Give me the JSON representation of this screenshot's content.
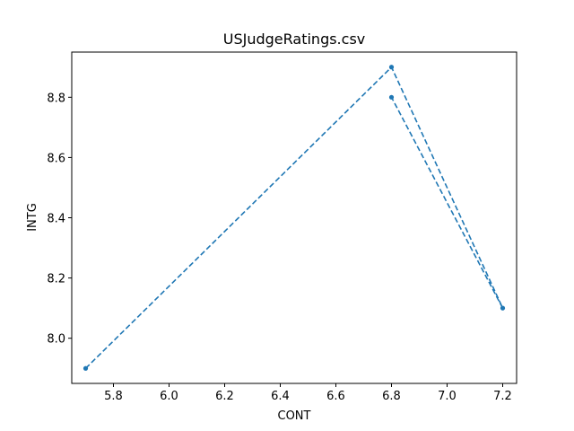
{
  "chart_data": {
    "type": "line",
    "title": "USJudgeRatings.csv",
    "xlabel": "CONT",
    "ylabel": "INTG",
    "xlim": [
      5.65,
      7.25
    ],
    "ylim": [
      7.85,
      8.95
    ],
    "xticks": [
      5.8,
      6.0,
      6.2,
      6.4,
      6.6,
      6.8,
      7.0,
      7.2
    ],
    "xtick_labels": [
      "5.8",
      "6.0",
      "6.2",
      "6.4",
      "6.6",
      "6.8",
      "7.0",
      "7.2"
    ],
    "yticks": [
      8.0,
      8.2,
      8.4,
      8.6,
      8.8
    ],
    "ytick_labels": [
      "8.0",
      "8.2",
      "8.4",
      "8.6",
      "8.8"
    ],
    "grid": false,
    "legend": false,
    "series": [
      {
        "color": "#1f77b4",
        "linestyle": "dashed",
        "marker": "dot",
        "x": [
          5.7,
          6.8,
          7.2,
          6.8
        ],
        "y": [
          7.9,
          8.9,
          8.1,
          8.8
        ]
      }
    ]
  }
}
